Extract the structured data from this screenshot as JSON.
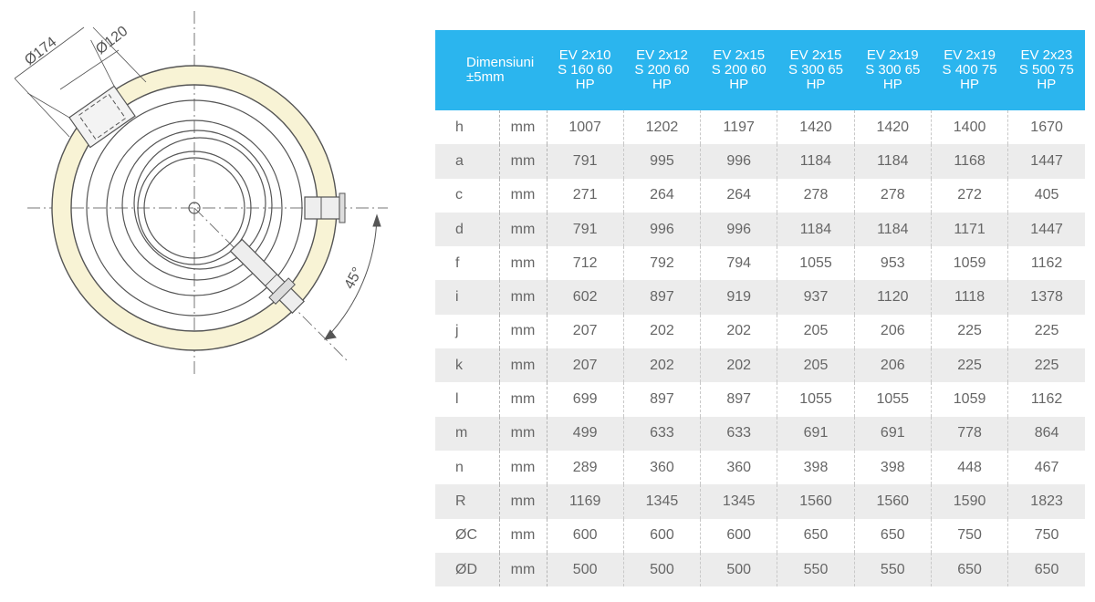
{
  "drawing": {
    "labels": {
      "outer_diameter": "Ø174",
      "inner_diameter": "Ø120",
      "angle": "45°"
    },
    "colors": {
      "insulation": "#f8f3d5",
      "line": "#555555"
    }
  },
  "table": {
    "header_color": "#2bb5ee",
    "dimension_label": "Dimensiuni\n±5mm",
    "columns": [
      "EV 2x10\nS 160 60\nHP",
      "EV 2x12\nS 200 60\nHP",
      "EV 2x15\nS 200 60\nHP",
      "EV 2x15\nS 300 65\nHP",
      "EV 2x19\nS 300 65\nHP",
      "EV 2x19\nS 400 75\nHP",
      "EV 2x23\nS 500 75\nHP"
    ],
    "rows": [
      {
        "symbol": "h",
        "unit": "mm",
        "values": [
          "1007",
          "1202",
          "1197",
          "1420",
          "1420",
          "1400",
          "1670"
        ]
      },
      {
        "symbol": "a",
        "unit": "mm",
        "values": [
          "791",
          "995",
          "996",
          "1184",
          "1184",
          "1168",
          "1447"
        ]
      },
      {
        "symbol": "c",
        "unit": "mm",
        "values": [
          "271",
          "264",
          "264",
          "278",
          "278",
          "272",
          "405"
        ]
      },
      {
        "symbol": "d",
        "unit": "mm",
        "values": [
          "791",
          "996",
          "996",
          "1184",
          "1184",
          "1171",
          "1447"
        ]
      },
      {
        "symbol": "f",
        "unit": "mm",
        "values": [
          "712",
          "792",
          "794",
          "1055",
          "953",
          "1059",
          "1162"
        ]
      },
      {
        "symbol": "i",
        "unit": "mm",
        "values": [
          "602",
          "897",
          "919",
          "937",
          "1120",
          "1118",
          "1378"
        ]
      },
      {
        "symbol": "j",
        "unit": "mm",
        "values": [
          "207",
          "202",
          "202",
          "205",
          "206",
          "225",
          "225"
        ]
      },
      {
        "symbol": "k",
        "unit": "mm",
        "values": [
          "207",
          "202",
          "202",
          "205",
          "206",
          "225",
          "225"
        ]
      },
      {
        "symbol": "l",
        "unit": "mm",
        "values": [
          "699",
          "897",
          "897",
          "1055",
          "1055",
          "1059",
          "1162"
        ]
      },
      {
        "symbol": "m",
        "unit": "mm",
        "values": [
          "499",
          "633",
          "633",
          "691",
          "691",
          "778",
          "864"
        ]
      },
      {
        "symbol": "n",
        "unit": "mm",
        "values": [
          "289",
          "360",
          "360",
          "398",
          "398",
          "448",
          "467"
        ]
      },
      {
        "symbol": "R",
        "unit": "mm",
        "values": [
          "1169",
          "1345",
          "1345",
          "1560",
          "1560",
          "1590",
          "1823"
        ]
      },
      {
        "symbol": "ØC",
        "unit": "mm",
        "values": [
          "600",
          "600",
          "600",
          "650",
          "650",
          "750",
          "750"
        ]
      },
      {
        "symbol": "ØD",
        "unit": "mm",
        "values": [
          "500",
          "500",
          "500",
          "550",
          "550",
          "650",
          "650"
        ]
      }
    ]
  }
}
